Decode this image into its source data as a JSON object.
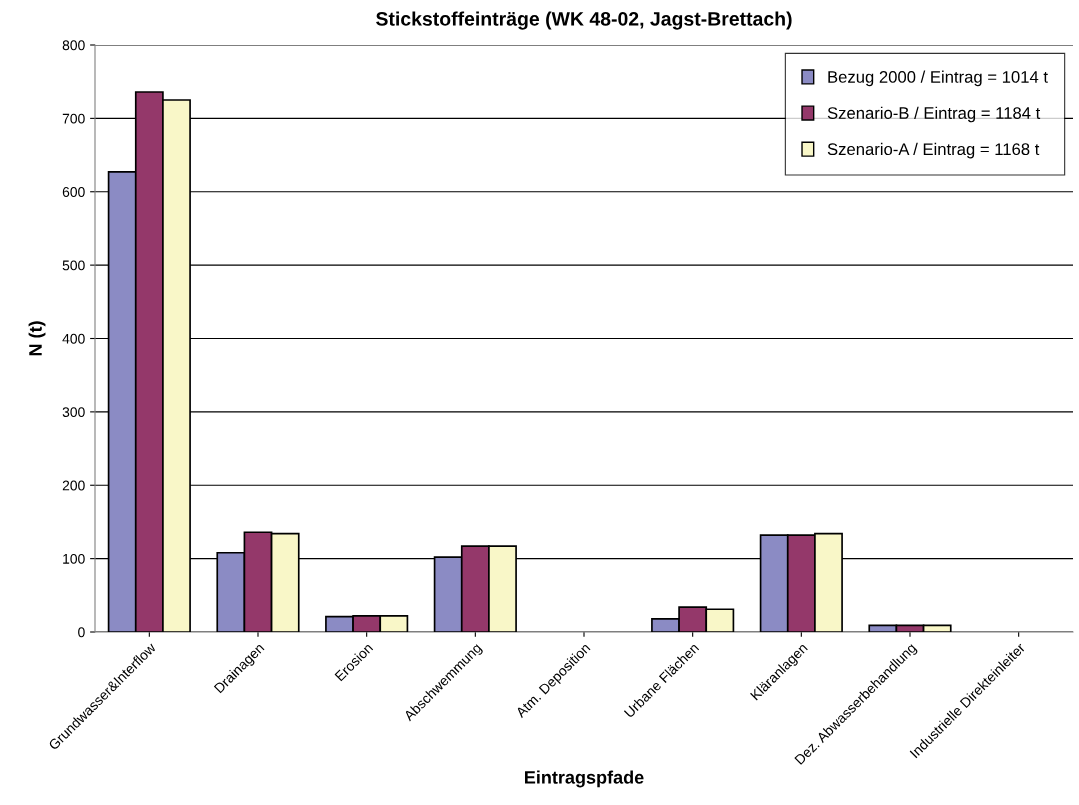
{
  "chart_data": {
    "type": "bar",
    "title": "Stickstoffeinträge (WK 48-02, Jagst-Brettach)",
    "xlabel": "Eintragspfade",
    "ylabel": "N (t)",
    "categories": [
      "Grundwasser&Interflow",
      "Drainagen",
      "Erosion",
      "Abschwemmung",
      "Atm. Deposition",
      "Urbane Flächen",
      "Kläranlagen",
      "Dez. Abwasserbehandlung",
      "Industrielle Direkteinleiter"
    ],
    "series": [
      {
        "name": "Bezug 2000 / Eintrag = 1014 t",
        "color": "#8b8bc4",
        "values": [
          627,
          108,
          21,
          102,
          0,
          18,
          132,
          9,
          0
        ]
      },
      {
        "name": "Szenario-B / Eintrag = 1184 t",
        "color": "#94386a",
        "values": [
          736,
          136,
          22,
          117,
          0,
          34,
          132,
          9,
          0
        ]
      },
      {
        "name": "Szenario-A / Eintrag = 1168 t",
        "color": "#f9f7c8",
        "values": [
          725,
          134,
          22,
          117,
          0,
          31,
          134,
          9,
          0
        ]
      }
    ],
    "ylim": [
      0,
      800
    ],
    "yticks": [
      0,
      100,
      200,
      300,
      400,
      500,
      600,
      700,
      800
    ],
    "grid": "y",
    "legend": "top right"
  }
}
